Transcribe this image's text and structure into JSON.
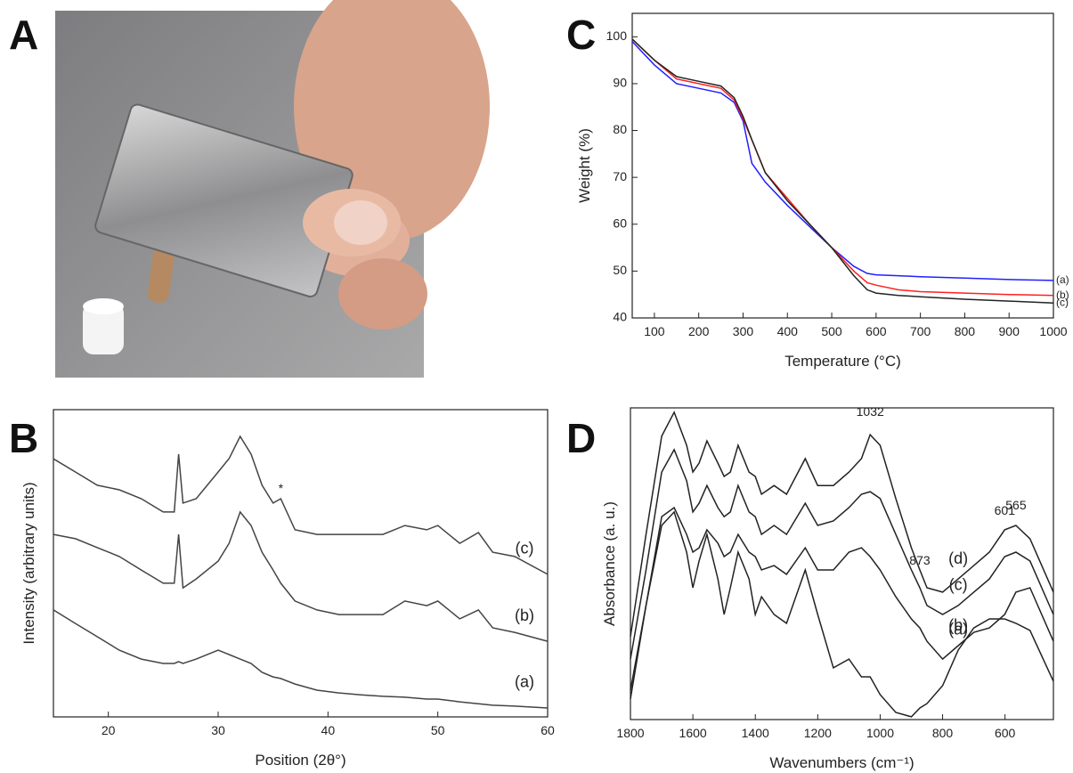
{
  "panel_labels": [
    "A",
    "B",
    "C",
    "D"
  ],
  "chart_data": [
    {
      "type": "line",
      "xlabel": "Position (2θ°)",
      "ylabel": "Intensity (arbitrary units)",
      "xlim": [
        15,
        60
      ],
      "ylim": [
        0,
        100
      ],
      "xticks": [
        20,
        30,
        40,
        50,
        60
      ],
      "x": [
        15,
        17,
        19,
        21,
        23,
        25,
        26,
        26.4,
        26.8,
        28,
        30,
        31,
        32,
        33,
        34,
        35,
        35.7,
        37,
        39,
        41,
        43,
        45,
        47,
        49,
        50,
        52,
        53.7,
        55,
        57,
        60
      ],
      "series": [
        {
          "name": "(c)",
          "color": "#444444",
          "values": [
            84,
            79.7,
            75.4,
            73.9,
            71,
            66.7,
            66.7,
            85.5,
            69.6,
            71,
            79.7,
            84.1,
            91.3,
            85.5,
            75.4,
            69.6,
            71,
            60.9,
            59.4,
            59.4,
            59.4,
            59.4,
            62.3,
            60.9,
            62.3,
            56.5,
            60,
            53.6,
            52.2,
            46.4
          ]
        },
        {
          "name": "(b)",
          "color": "#444444",
          "values": [
            59.4,
            58,
            55.1,
            52.2,
            47.8,
            43.5,
            43.5,
            59.4,
            42,
            44.9,
            50.7,
            56.5,
            66.7,
            62.3,
            53.6,
            47.8,
            43.5,
            37.7,
            34.8,
            33.3,
            33.3,
            33.3,
            37.7,
            36.2,
            37.7,
            31.9,
            34.8,
            29,
            27.5,
            24.6
          ]
        },
        {
          "name": "(a)",
          "color": "#444444",
          "values": [
            34.8,
            30.4,
            26.1,
            21.7,
            18.8,
            17.4,
            17.4,
            18,
            17.4,
            18.8,
            21.7,
            20.3,
            18.8,
            17.4,
            14.5,
            13,
            12.5,
            10.7,
            8.7,
            7.8,
            7.2,
            6.7,
            6.4,
            5.8,
            5.8,
            4.9,
            4.3,
            3.8,
            3.5,
            2.9
          ]
        }
      ],
      "annotations": [
        {
          "text": "*",
          "x": 35.7,
          "y": 73
        }
      ]
    },
    {
      "type": "line",
      "xlabel": "Temperature (°C)",
      "ylabel": "Weight (%)",
      "xlim": [
        50,
        1000
      ],
      "ylim": [
        40,
        105
      ],
      "xticks": [
        100,
        200,
        300,
        400,
        500,
        600,
        700,
        800,
        900,
        1000
      ],
      "yticks": [
        40,
        50,
        60,
        70,
        80,
        90,
        100
      ],
      "x": [
        50,
        100,
        150,
        200,
        250,
        280,
        300,
        320,
        350,
        400,
        450,
        500,
        550,
        580,
        600,
        650,
        700,
        800,
        900,
        1000
      ],
      "series": [
        {
          "name": "(a)",
          "color": "#2020ff",
          "values": [
            99,
            94,
            90,
            89,
            88,
            86,
            82,
            73,
            69,
            64,
            59.5,
            55,
            51,
            49.5,
            49.2,
            49,
            48.8,
            48.5,
            48.2,
            48
          ]
        },
        {
          "name": "(b)",
          "color": "#ff2020",
          "values": [
            99.5,
            95,
            91,
            90,
            89,
            86.5,
            82.5,
            78,
            71,
            65.5,
            60,
            55,
            50,
            47.5,
            47,
            46,
            45.6,
            45.3,
            45,
            44.8
          ]
        },
        {
          "name": "(c)",
          "color": "#222222",
          "values": [
            99.5,
            95,
            91.5,
            90.5,
            89.5,
            87,
            83,
            78,
            71,
            65,
            60,
            55,
            49,
            46,
            45.3,
            44.8,
            44.5,
            44,
            43.6,
            43.2
          ]
        }
      ]
    },
    {
      "type": "line",
      "xlabel": "Wavenumbers (cm⁻¹)",
      "ylabel": "Absorbance (a. u.)",
      "xlim": [
        1800,
        445
      ],
      "ylim": [
        0,
        100
      ],
      "xticks": [
        1800,
        1600,
        1400,
        1200,
        1000,
        800,
        600
      ],
      "x": [
        1800,
        1750,
        1700,
        1660,
        1620,
        1600,
        1580,
        1555,
        1520,
        1500,
        1480,
        1455,
        1420,
        1400,
        1380,
        1340,
        1300,
        1240,
        1200,
        1150,
        1100,
        1060,
        1032,
        1000,
        950,
        900,
        873,
        850,
        800,
        750,
        700,
        650,
        601,
        565,
        520,
        445
      ],
      "series": [
        {
          "name": "(d)",
          "color": "#222222",
          "values": [
            26.6,
            59.4,
            90.9,
            98.6,
            88,
            79.4,
            82.3,
            89.4,
            82.3,
            78,
            79.4,
            88,
            79.4,
            78,
            72.3,
            75.1,
            72.3,
            83.7,
            75.1,
            75.1,
            79.4,
            83.7,
            91.4,
            88,
            70.9,
            55.1,
            48,
            42.3,
            40.9,
            45.1,
            49.4,
            53.7,
            60.9,
            62.3,
            58,
            40.9
          ]
        },
        {
          "name": "(c)",
          "color": "#222222",
          "values": [
            19.4,
            48,
            79.4,
            86.6,
            76.6,
            66.6,
            69.4,
            75.1,
            68,
            65.1,
            66.6,
            75.1,
            66.6,
            65.1,
            59.4,
            62.3,
            59.4,
            69.4,
            62.3,
            63.7,
            68,
            72.3,
            73.1,
            70.9,
            59.4,
            48,
            42.3,
            36.6,
            33.7,
            36.6,
            40.9,
            45.1,
            52.3,
            53.7,
            50.9,
            33.7
          ]
        },
        {
          "name": "(b)",
          "color": "#222222",
          "values": [
            9.4,
            36.6,
            65.1,
            68,
            59.4,
            53.7,
            55.1,
            60.9,
            56.6,
            52.3,
            53.7,
            59.4,
            53.7,
            52.3,
            48,
            49.4,
            46.6,
            55.1,
            48,
            48,
            53.7,
            55.1,
            52.3,
            48,
            39.4,
            32.3,
            29.4,
            25.1,
            19.4,
            23.7,
            28,
            29.4,
            33.7,
            40.9,
            42.3,
            25.1
          ]
        },
        {
          "name": "(a)",
          "color": "#222222",
          "values": [
            6.6,
            36.6,
            62.3,
            66.6,
            53.7,
            42.3,
            50.9,
            59.4,
            45.1,
            33.7,
            42.3,
            53.7,
            45.1,
            33.7,
            39.4,
            33.7,
            30.9,
            48,
            33.7,
            16.6,
            19.4,
            13.7,
            13.7,
            8,
            2.3,
            0.9,
            3.7,
            5.1,
            10.9,
            22.3,
            29.4,
            32.3,
            32.3,
            30.9,
            28.6,
            12.3
          ]
        }
      ],
      "annotations": [
        {
          "text": "1032",
          "x": 1032,
          "y": 97.4
        },
        {
          "text": "873",
          "x": 873,
          "y": 49.7
        },
        {
          "text": "601",
          "x": 601,
          "y": 65.7
        },
        {
          "text": "565",
          "x": 565,
          "y": 67.4
        }
      ]
    }
  ]
}
